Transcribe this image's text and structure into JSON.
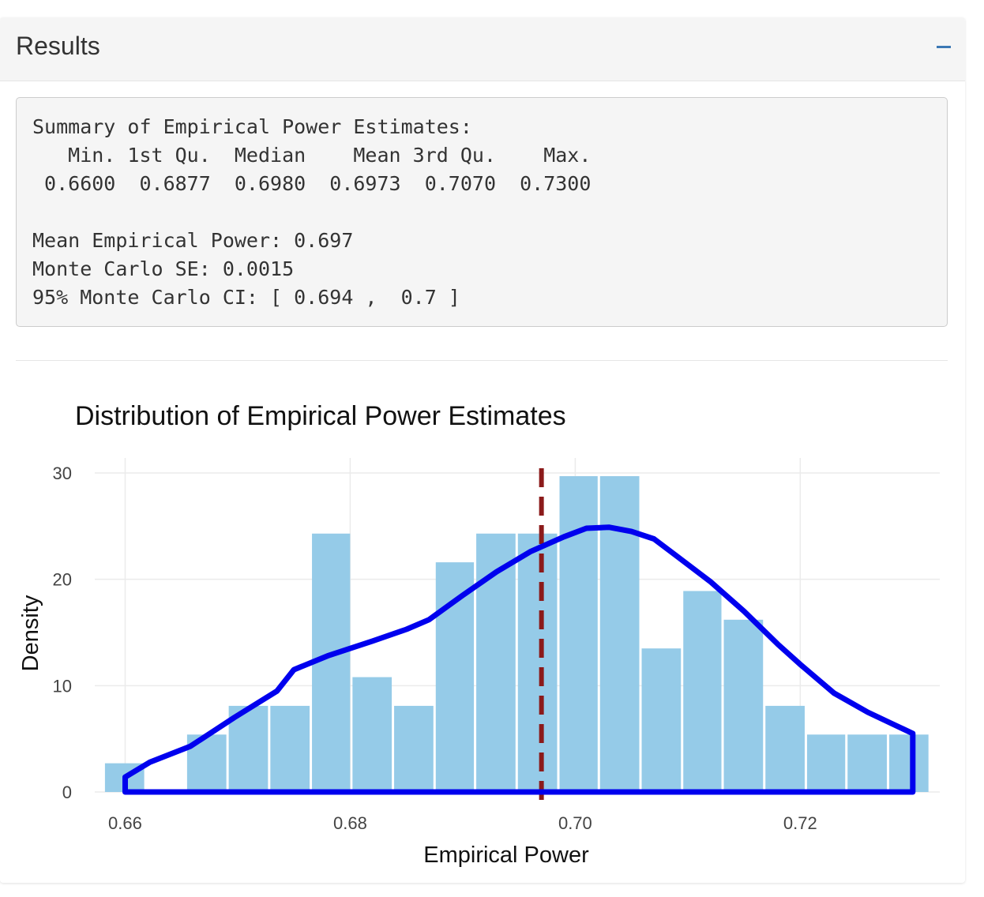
{
  "panel": {
    "title": "Results",
    "collapse_icon": "minus-icon"
  },
  "summary": {
    "lines": [
      "Summary of Empirical Power Estimates:",
      "   Min. 1st Qu.  Median    Mean 3rd Qu.    Max.",
      " 0.6600  0.6877  0.6980  0.6973  0.7070  0.7300",
      "",
      "Mean Empirical Power: 0.697",
      "Monte Carlo SE: 0.0015",
      "95% Monte Carlo CI: [ 0.694 ,  0.7 ]"
    ]
  },
  "colors": {
    "bar_fill": "#95cbe8",
    "density_line": "#0000ee",
    "mean_line": "#8b1a1a",
    "grid": "#ebebeb",
    "collapse_icon": "#3c78b4"
  },
  "chart_data": {
    "type": "bar",
    "title": "Distribution of Empirical Power Estimates",
    "xlabel": "Empirical Power",
    "ylabel": "Density",
    "xlim": [
      0.6573,
      0.7324
    ],
    "ylim": [
      0,
      30
    ],
    "x_ticks": [
      0.66,
      0.68,
      0.7,
      0.72
    ],
    "x_tick_labels": [
      "0.66",
      "0.68",
      "0.70",
      "0.72"
    ],
    "y_ticks": [
      0,
      10,
      20,
      30
    ],
    "y_tick_labels": [
      "0",
      "10",
      "20",
      "30"
    ],
    "grid": true,
    "histogram": {
      "bin_width": 0.003666,
      "bins": [
        {
          "x0": 0.6581,
          "x1": 0.6618,
          "density": 2.7
        },
        {
          "x0": 0.6618,
          "x1": 0.6654,
          "density": 0.0
        },
        {
          "x0": 0.6654,
          "x1": 0.6691,
          "density": 5.4
        },
        {
          "x0": 0.6691,
          "x1": 0.6728,
          "density": 8.1
        },
        {
          "x0": 0.6728,
          "x1": 0.6765,
          "density": 8.1
        },
        {
          "x0": 0.6765,
          "x1": 0.6801,
          "density": 24.3
        },
        {
          "x0": 0.6801,
          "x1": 0.6838,
          "density": 10.8
        },
        {
          "x0": 0.6838,
          "x1": 0.6875,
          "density": 8.1
        },
        {
          "x0": 0.6875,
          "x1": 0.6911,
          "density": 21.6
        },
        {
          "x0": 0.6911,
          "x1": 0.6948,
          "density": 24.3
        },
        {
          "x0": 0.6948,
          "x1": 0.6985,
          "density": 24.3
        },
        {
          "x0": 0.6985,
          "x1": 0.7021,
          "density": 29.7
        },
        {
          "x0": 0.7021,
          "x1": 0.7058,
          "density": 29.7
        },
        {
          "x0": 0.7058,
          "x1": 0.7095,
          "density": 13.5
        },
        {
          "x0": 0.7095,
          "x1": 0.7131,
          "density": 18.9
        },
        {
          "x0": 0.7131,
          "x1": 0.7168,
          "density": 16.2
        },
        {
          "x0": 0.7168,
          "x1": 0.7205,
          "density": 8.1
        },
        {
          "x0": 0.7205,
          "x1": 0.7241,
          "density": 5.4
        },
        {
          "x0": 0.7241,
          "x1": 0.7278,
          "density": 5.4
        },
        {
          "x0": 0.7278,
          "x1": 0.7315,
          "density": 5.4
        }
      ]
    },
    "density_curve": [
      {
        "x": 0.66,
        "y": 0.0
      },
      {
        "x": 0.66,
        "y": 1.4
      },
      {
        "x": 0.6622,
        "y": 2.8
      },
      {
        "x": 0.6658,
        "y": 4.3
      },
      {
        "x": 0.6697,
        "y": 7.0
      },
      {
        "x": 0.6735,
        "y": 9.5
      },
      {
        "x": 0.675,
        "y": 11.5
      },
      {
        "x": 0.678,
        "y": 12.8
      },
      {
        "x": 0.682,
        "y": 14.2
      },
      {
        "x": 0.685,
        "y": 15.3
      },
      {
        "x": 0.687,
        "y": 16.2
      },
      {
        "x": 0.69,
        "y": 18.5
      },
      {
        "x": 0.693,
        "y": 20.7
      },
      {
        "x": 0.696,
        "y": 22.6
      },
      {
        "x": 0.699,
        "y": 24.0
      },
      {
        "x": 0.701,
        "y": 24.8
      },
      {
        "x": 0.703,
        "y": 24.9
      },
      {
        "x": 0.705,
        "y": 24.5
      },
      {
        "x": 0.707,
        "y": 23.8
      },
      {
        "x": 0.709,
        "y": 22.2
      },
      {
        "x": 0.712,
        "y": 19.8
      },
      {
        "x": 0.715,
        "y": 17.0
      },
      {
        "x": 0.718,
        "y": 13.9
      },
      {
        "x": 0.72,
        "y": 12.0
      },
      {
        "x": 0.723,
        "y": 9.3
      },
      {
        "x": 0.726,
        "y": 7.5
      },
      {
        "x": 0.728,
        "y": 6.5
      },
      {
        "x": 0.73,
        "y": 5.5
      },
      {
        "x": 0.73,
        "y": 3.6
      },
      {
        "x": 0.73,
        "y": 0.0
      },
      {
        "x": 0.66,
        "y": 0.0
      }
    ],
    "mean_line": {
      "x": 0.697,
      "style": "dashed"
    }
  }
}
